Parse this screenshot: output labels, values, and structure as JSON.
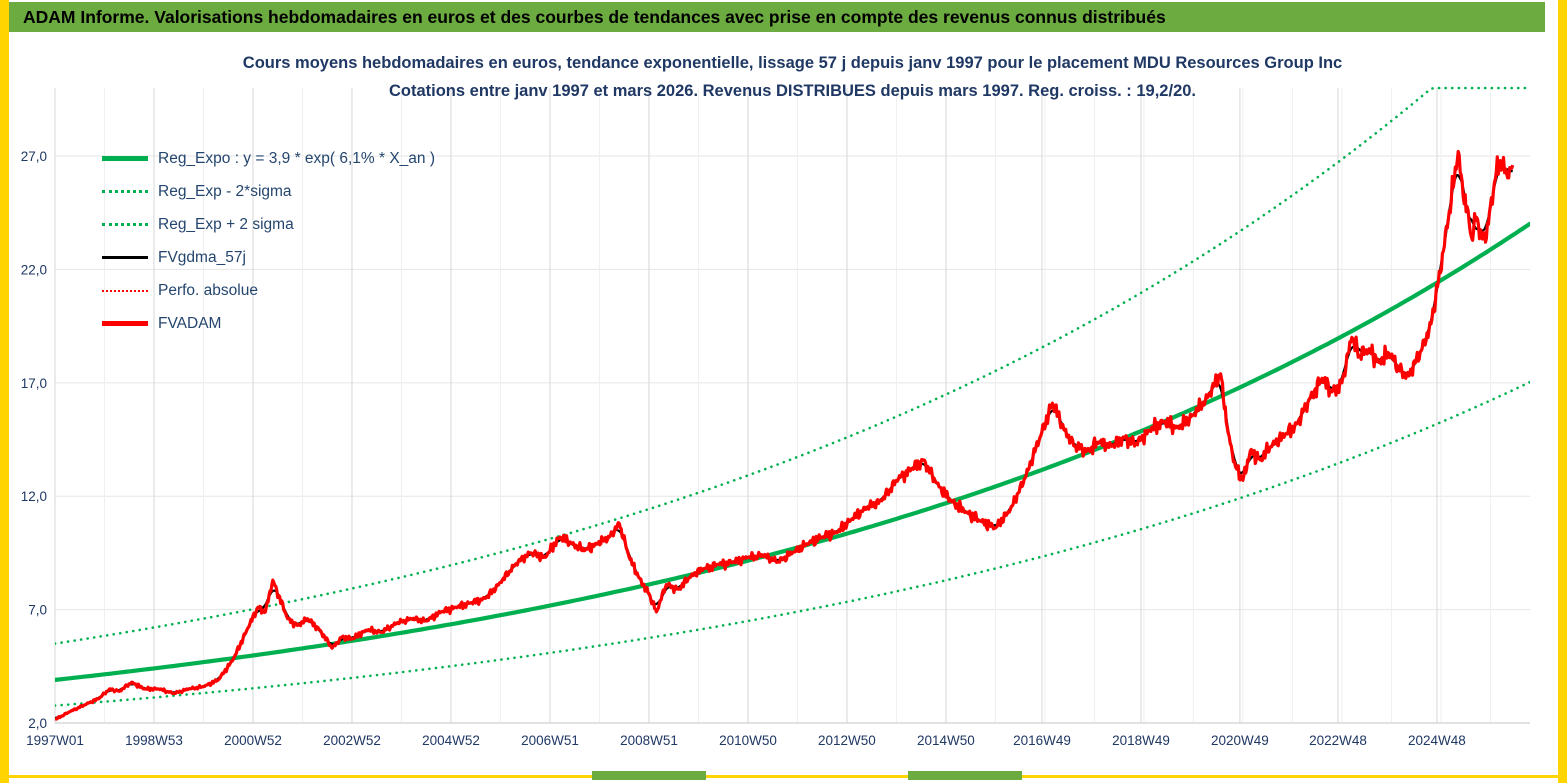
{
  "window": {
    "header_title": "ADAM Informe. Valorisations hebdomadaires en euros et des courbes de tendances avec prise en compte des revenus connus distribués"
  },
  "chart_data": {
    "type": "line",
    "title_line1": "Cours moyens hebdomadaires en euros, tendance exponentielle, lissage 57 j depuis janv 1997 pour le placement MDU Resources Group Inc",
    "title_line2": "Cotations entre janv 1997 et mars 2026. Revenus DISTRIBUES depuis mars 1997. Reg. croiss. : 19,2/20.",
    "legend_position": "top-left",
    "grid": true,
    "x_axis": {
      "min": 1997.0,
      "max": 2026.8,
      "ticks": [
        {
          "pos": 1997.0,
          "label": "1997W01"
        },
        {
          "pos": 1999.0,
          "label": "1998W53"
        },
        {
          "pos": 2001.0,
          "label": "2000W52"
        },
        {
          "pos": 2003.0,
          "label": "2002W52"
        },
        {
          "pos": 2005.0,
          "label": "2004W52"
        },
        {
          "pos": 2007.0,
          "label": "2006W51"
        },
        {
          "pos": 2009.0,
          "label": "2008W51"
        },
        {
          "pos": 2011.0,
          "label": "2010W50"
        },
        {
          "pos": 2013.0,
          "label": "2012W50"
        },
        {
          "pos": 2015.0,
          "label": "2014W50"
        },
        {
          "pos": 2016.94,
          "label": "2016W49"
        },
        {
          "pos": 2018.94,
          "label": "2018W49"
        },
        {
          "pos": 2020.94,
          "label": "2020W49"
        },
        {
          "pos": 2022.92,
          "label": "2022W48"
        },
        {
          "pos": 2024.92,
          "label": "2024W48"
        }
      ]
    },
    "y_axis": {
      "min": 2,
      "max": 30,
      "ticks": [
        2,
        7,
        12,
        17,
        22,
        27
      ],
      "tick_labels": [
        "2,0",
        "7,0",
        "12,0",
        "17,0",
        "22,0",
        "27,0"
      ]
    },
    "colors": {
      "green": "#00B050",
      "red": "#FF0000",
      "black": "#000000",
      "navy": "#1F3864",
      "header_green": "#6CAB3F",
      "edge_yellow": "#FFD400",
      "grid": "#D9D9D9"
    },
    "regression": {
      "label": "Reg_Expo : y = 3,9 * exp( 6,1% *  X_an )",
      "a": 3.9,
      "growth_rate": 0.061
    },
    "sigma_band_factor": 1.41,
    "legend": [
      {
        "label": "Reg_Expo : y = 3,9 * exp( 6,1% *  X_an )",
        "color": "#00B050",
        "style": "solid-thick"
      },
      {
        "label": "Reg_Exp - 2*sigma",
        "color": "#00B050",
        "style": "dotted"
      },
      {
        "label": "Reg_Exp + 2 sigma",
        "color": "#00B050",
        "style": "dotted"
      },
      {
        "label": "FVgdma_57j",
        "color": "#000000",
        "style": "solid"
      },
      {
        "label": "Perfo. absolue",
        "color": "#FF0000",
        "style": "dotted"
      },
      {
        "label": "FVADAM",
        "color": "#FF0000",
        "style": "solid-thick"
      }
    ],
    "fvadam_points": [
      [
        1997.0,
        2.15
      ],
      [
        1997.3,
        2.5
      ],
      [
        1997.6,
        2.8
      ],
      [
        1997.9,
        3.1
      ],
      [
        1998.1,
        3.5
      ],
      [
        1998.3,
        3.4
      ],
      [
        1998.55,
        3.8
      ],
      [
        1998.8,
        3.5
      ],
      [
        1999.1,
        3.5
      ],
      [
        1999.4,
        3.3
      ],
      [
        1999.7,
        3.5
      ],
      [
        2000.0,
        3.6
      ],
      [
        2000.3,
        3.9
      ],
      [
        2000.6,
        4.8
      ],
      [
        2000.9,
        6.2
      ],
      [
        2001.1,
        7.1
      ],
      [
        2001.25,
        6.9
      ],
      [
        2001.4,
        8.3
      ],
      [
        2001.7,
        6.6
      ],
      [
        2001.9,
        6.3
      ],
      [
        2002.1,
        6.6
      ],
      [
        2002.35,
        6.1
      ],
      [
        2002.6,
        5.3
      ],
      [
        2002.8,
        5.8
      ],
      [
        2003.0,
        5.7
      ],
      [
        2003.3,
        6.1
      ],
      [
        2003.6,
        6.0
      ],
      [
        2003.9,
        6.4
      ],
      [
        2004.2,
        6.6
      ],
      [
        2004.5,
        6.5
      ],
      [
        2004.8,
        6.9
      ],
      [
        2005.1,
        7.1
      ],
      [
        2005.4,
        7.3
      ],
      [
        2005.7,
        7.5
      ],
      [
        2006.0,
        8.2
      ],
      [
        2006.3,
        9.0
      ],
      [
        2006.6,
        9.5
      ],
      [
        2006.9,
        9.3
      ],
      [
        2007.2,
        10.2
      ],
      [
        2007.45,
        9.9
      ],
      [
        2007.7,
        9.6
      ],
      [
        2007.95,
        9.9
      ],
      [
        2008.2,
        10.2
      ],
      [
        2008.4,
        10.8
      ],
      [
        2008.6,
        9.3
      ],
      [
        2008.8,
        8.4
      ],
      [
        2009.0,
        7.7
      ],
      [
        2009.15,
        6.9
      ],
      [
        2009.35,
        8.1
      ],
      [
        2009.6,
        7.9
      ],
      [
        2009.85,
        8.5
      ],
      [
        2010.1,
        8.8
      ],
      [
        2010.4,
        9.0
      ],
      [
        2010.7,
        9.1
      ],
      [
        2011.0,
        9.3
      ],
      [
        2011.3,
        9.4
      ],
      [
        2011.6,
        9.1
      ],
      [
        2011.9,
        9.5
      ],
      [
        2012.2,
        9.9
      ],
      [
        2012.5,
        10.2
      ],
      [
        2012.8,
        10.4
      ],
      [
        2013.1,
        11.0
      ],
      [
        2013.4,
        11.5
      ],
      [
        2013.7,
        11.8
      ],
      [
        2014.0,
        12.7
      ],
      [
        2014.3,
        13.2
      ],
      [
        2014.55,
        13.6
      ],
      [
        2014.8,
        12.6
      ],
      [
        2015.1,
        11.8
      ],
      [
        2015.4,
        11.3
      ],
      [
        2015.7,
        10.9
      ],
      [
        2016.0,
        10.6
      ],
      [
        2016.3,
        11.4
      ],
      [
        2016.6,
        12.8
      ],
      [
        2016.9,
        14.6
      ],
      [
        2017.15,
        16.1
      ],
      [
        2017.4,
        14.9
      ],
      [
        2017.6,
        14.2
      ],
      [
        2017.85,
        14.0
      ],
      [
        2018.1,
        14.4
      ],
      [
        2018.35,
        14.2
      ],
      [
        2018.6,
        14.6
      ],
      [
        2018.85,
        14.3
      ],
      [
        2019.1,
        14.9
      ],
      [
        2019.4,
        15.3
      ],
      [
        2019.7,
        15.0
      ],
      [
        2020.0,
        15.6
      ],
      [
        2020.3,
        16.4
      ],
      [
        2020.55,
        17.4
      ],
      [
        2020.7,
        14.8
      ],
      [
        2020.85,
        13.3
      ],
      [
        2021.0,
        12.7
      ],
      [
        2021.15,
        14.0
      ],
      [
        2021.35,
        13.6
      ],
      [
        2021.6,
        14.3
      ],
      [
        2021.85,
        14.7
      ],
      [
        2022.1,
        15.2
      ],
      [
        2022.35,
        16.3
      ],
      [
        2022.6,
        17.2
      ],
      [
        2022.8,
        16.6
      ],
      [
        2023.0,
        17.0
      ],
      [
        2023.2,
        19.0
      ],
      [
        2023.35,
        18.2
      ],
      [
        2023.55,
        18.5
      ],
      [
        2023.75,
        17.9
      ],
      [
        2023.95,
        18.3
      ],
      [
        2024.15,
        17.6
      ],
      [
        2024.35,
        17.3
      ],
      [
        2024.6,
        18.4
      ],
      [
        2024.8,
        19.6
      ],
      [
        2024.95,
        21.5
      ],
      [
        2025.15,
        24.2
      ],
      [
        2025.35,
        27.2
      ],
      [
        2025.45,
        25.2
      ],
      [
        2025.55,
        24.6
      ],
      [
        2025.62,
        23.4
      ],
      [
        2025.72,
        24.3
      ],
      [
        2025.82,
        23.6
      ],
      [
        2025.9,
        23.2
      ],
      [
        2026.0,
        24.8
      ],
      [
        2026.1,
        26.0
      ],
      [
        2026.2,
        26.8
      ],
      [
        2026.33,
        26.2
      ],
      [
        2026.45,
        26.6
      ]
    ]
  }
}
